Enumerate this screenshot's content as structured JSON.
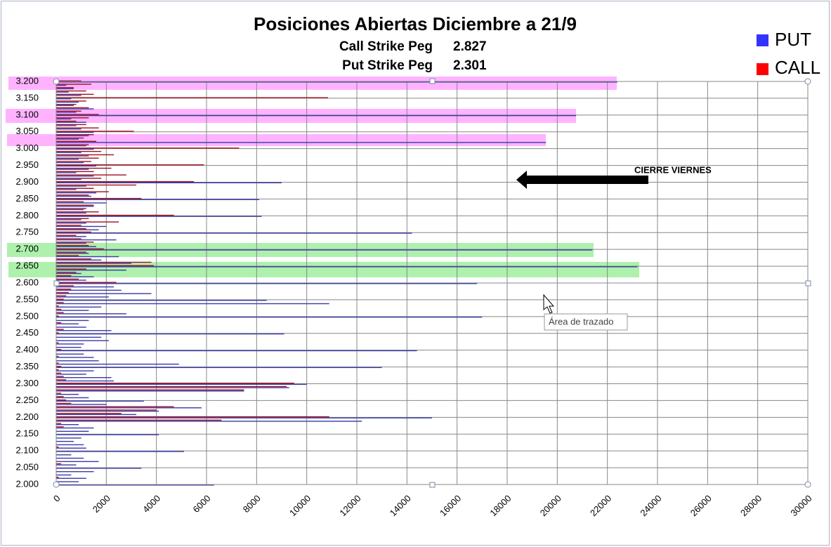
{
  "chart_data": {
    "type": "hbar",
    "title": "Posiciones Abiertas Diciembre a 21/9",
    "pegs": [
      {
        "label": "Call Strike Peg",
        "value": 2.827
      },
      {
        "label": "Put Strike Peg",
        "value": 2.301
      }
    ],
    "annotation": "CIERRE VIERNES",
    "tooltip": "Área de trazado",
    "strikes": [
      2.0,
      2.01,
      2.02,
      2.03,
      2.04,
      2.05,
      2.06,
      2.07,
      2.08,
      2.09,
      2.1,
      2.11,
      2.12,
      2.13,
      2.14,
      2.15,
      2.16,
      2.17,
      2.18,
      2.19,
      2.2,
      2.21,
      2.22,
      2.23,
      2.24,
      2.25,
      2.26,
      2.27,
      2.28,
      2.29,
      2.3,
      2.31,
      2.32,
      2.33,
      2.34,
      2.35,
      2.36,
      2.37,
      2.38,
      2.39,
      2.4,
      2.41,
      2.42,
      2.43,
      2.44,
      2.45,
      2.46,
      2.47,
      2.48,
      2.49,
      2.5,
      2.51,
      2.52,
      2.53,
      2.54,
      2.55,
      2.56,
      2.57,
      2.58,
      2.59,
      2.6,
      2.61,
      2.62,
      2.63,
      2.64,
      2.65,
      2.66,
      2.67,
      2.68,
      2.69,
      2.7,
      2.71,
      2.72,
      2.73,
      2.74,
      2.75,
      2.76,
      2.77,
      2.78,
      2.79,
      2.8,
      2.81,
      2.82,
      2.83,
      2.84,
      2.85,
      2.86,
      2.87,
      2.88,
      2.89,
      2.9,
      2.91,
      2.92,
      2.93,
      2.94,
      2.95,
      2.96,
      2.97,
      2.98,
      2.99,
      3.0,
      3.01,
      3.02,
      3.03,
      3.04,
      3.05,
      3.06,
      3.07,
      3.08,
      3.09,
      3.1,
      3.11,
      3.12,
      3.13,
      3.14,
      3.15,
      3.16,
      3.17,
      3.18,
      3.19,
      3.2
    ],
    "series": [
      {
        "name": "PUT",
        "color": "#3333ff",
        "bar_color": "#3a3aa8",
        "values": [
          6300,
          900,
          1200,
          600,
          1500,
          3400,
          800,
          1700,
          1100,
          600,
          5100,
          1200,
          1100,
          700,
          1000,
          4100,
          1300,
          1500,
          900,
          12200,
          15000,
          3200,
          4100,
          5800,
          2000,
          3500,
          1300,
          900,
          7500,
          9300,
          10000,
          2300,
          2200,
          1200,
          1500,
          13000,
          4900,
          1700,
          1500,
          1100,
          14400,
          1000,
          1100,
          2100,
          1800,
          9100,
          2200,
          1200,
          900,
          1300,
          17000,
          2800,
          1300,
          1800,
          10900,
          8400,
          2100,
          3800,
          2600,
          2300,
          16800,
          1200,
          1500,
          1000,
          2800,
          23200,
          3000,
          1800,
          2500,
          1300,
          21400,
          1600,
          1200,
          2400,
          1200,
          14200,
          1700,
          2000,
          1200,
          1000,
          8200,
          1200,
          1100,
          1500,
          2000,
          8100,
          1400,
          1600,
          800,
          1200,
          9000,
          1000,
          1500,
          800,
          1300,
          1600,
          1100,
          900,
          1300,
          1000,
          1500,
          1200,
          19550,
          900,
          1300,
          1500,
          1000,
          800,
          1200,
          600,
          20750,
          800,
          1500,
          700,
          900,
          600,
          1000,
          500,
          700,
          400,
          22400
        ]
      },
      {
        "name": "CALL",
        "color": "#ff0000",
        "bar_color": "#a01020",
        "values": [
          0,
          0,
          100,
          0,
          0,
          0,
          200,
          0,
          0,
          0,
          0,
          100,
          0,
          0,
          0,
          0,
          0,
          300,
          200,
          6600,
          10900,
          2600,
          4000,
          4700,
          600,
          400,
          300,
          200,
          7500,
          9200,
          9500,
          400,
          300,
          200,
          100,
          200,
          100,
          0,
          100,
          0,
          200,
          0,
          100,
          0,
          0,
          100,
          300,
          0,
          200,
          0,
          100,
          300,
          200,
          100,
          300,
          300,
          400,
          500,
          600,
          700,
          2400,
          900,
          600,
          800,
          1200,
          3900,
          3800,
          1400,
          900,
          1200,
          1900,
          1300,
          1500,
          1000,
          800,
          1400,
          1200,
          1000,
          2500,
          1300,
          4700,
          1700,
          1200,
          1500,
          1100,
          3400,
          1300,
          2100,
          1500,
          3200,
          5500,
          1800,
          2800,
          1500,
          2200,
          5900,
          1400,
          1700,
          2300,
          1800,
          7300,
          1300,
          1600,
          1100,
          1500,
          3100,
          1700,
          1200,
          800,
          1300,
          1700,
          1000,
          1300,
          800,
          1200,
          10850,
          1500,
          1200,
          700,
          1400,
          1000
        ]
      }
    ],
    "xlim": [
      0,
      30000
    ],
    "xticks": [
      0,
      2000,
      4000,
      6000,
      8000,
      10000,
      12000,
      14000,
      16000,
      18000,
      20000,
      22000,
      24000,
      26000,
      28000,
      30000
    ],
    "ylim": [
      2.0,
      3.2
    ],
    "yticks": [
      {
        "value": 2.0,
        "label": "2.000"
      },
      {
        "value": 2.05,
        "label": "2.050"
      },
      {
        "value": 2.1,
        "label": "2.100"
      },
      {
        "value": 2.15,
        "label": "2.150"
      },
      {
        "value": 2.2,
        "label": "2.200"
      },
      {
        "value": 2.25,
        "label": "2.250"
      },
      {
        "value": 2.3,
        "label": "2.300"
      },
      {
        "value": 2.35,
        "label": "2.350"
      },
      {
        "value": 2.4,
        "label": "2.400"
      },
      {
        "value": 2.45,
        "label": "2.450"
      },
      {
        "value": 2.5,
        "label": "2.500"
      },
      {
        "value": 2.55,
        "label": "2.550"
      },
      {
        "value": 2.6,
        "label": "2.600"
      },
      {
        "value": 2.65,
        "label": "2.650"
      },
      {
        "value": 2.7,
        "label": "2.700"
      },
      {
        "value": 2.75,
        "label": "2.750"
      },
      {
        "value": 2.8,
        "label": "2.800"
      },
      {
        "value": 2.85,
        "label": "2.850"
      },
      {
        "value": 2.9,
        "label": "2.900"
      },
      {
        "value": 2.95,
        "label": "2.950"
      },
      {
        "value": 3.0,
        "label": "3.000"
      },
      {
        "value": 3.05,
        "label": "3.050"
      },
      {
        "value": 3.1,
        "label": "3.100"
      },
      {
        "value": 3.15,
        "label": "3.150"
      },
      {
        "value": 3.2,
        "label": "3.200"
      }
    ],
    "grid": true
  }
}
